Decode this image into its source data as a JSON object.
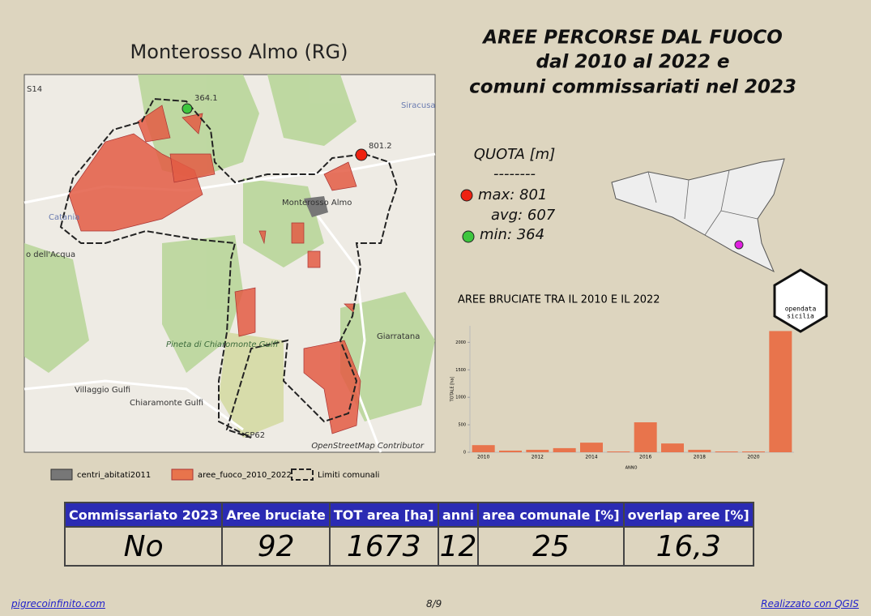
{
  "map_title": "Monterosso Almo (RG)",
  "title_lines": [
    "AREE PERCORSE DAL FUOCO",
    "dal 2010 al 2022 e",
    "comuni commissariati nel 2023"
  ],
  "map": {
    "labels": [
      "364.1",
      "801.2",
      "Catania",
      "Monterosso Almo",
      "Giarratana",
      "Villaggio Gulfi",
      "Chiaramonte Gulfi",
      "Pineta di Chiaromonte Gulfi",
      "o dell'Acqua",
      "SP62",
      "S14",
      "Siracusa",
      "OpenStreetMap Contributor"
    ]
  },
  "legend": [
    "centri_abitati2011",
    "aree_fuoco_2010_2022",
    "Limiti comunali"
  ],
  "quota": {
    "title": "QUOTA [m]",
    "separator": "--------",
    "max": "max: 801",
    "avg": "avg: 607",
    "min": "min: 364"
  },
  "logo": {
    "line1": "opendata",
    "line2": "sicilia"
  },
  "chart_data": {
    "type": "bar",
    "title": "AREE BRUCIATE TRA IL 2010 E IL 2022",
    "x_label": "ANNO",
    "y_label": "TOTALE [ha]",
    "categories": [
      "2010",
      null,
      "2012",
      null,
      "2014",
      null,
      "2016",
      null,
      "2018",
      null,
      "2020",
      null
    ],
    "values": [
      130,
      30,
      45,
      75,
      175,
      15,
      545,
      160,
      45,
      15,
      15,
      2205
    ],
    "color": "#e8744c",
    "ylim": [
      0,
      2300
    ],
    "yticks": [
      0,
      500,
      1000,
      1500,
      2000
    ]
  },
  "table": {
    "header": [
      "Commissariato 2023",
      "Aree bruciate",
      "TOT area [ha]",
      "anni",
      "area comunale [%]",
      "overlap aree [%]"
    ],
    "row": [
      "No",
      "92",
      "1673",
      "12",
      "25",
      "16,3"
    ]
  },
  "footer": {
    "left": "pigrecoinfinito.com",
    "center": "8/9",
    "right": "Realizzato con QGIS"
  }
}
